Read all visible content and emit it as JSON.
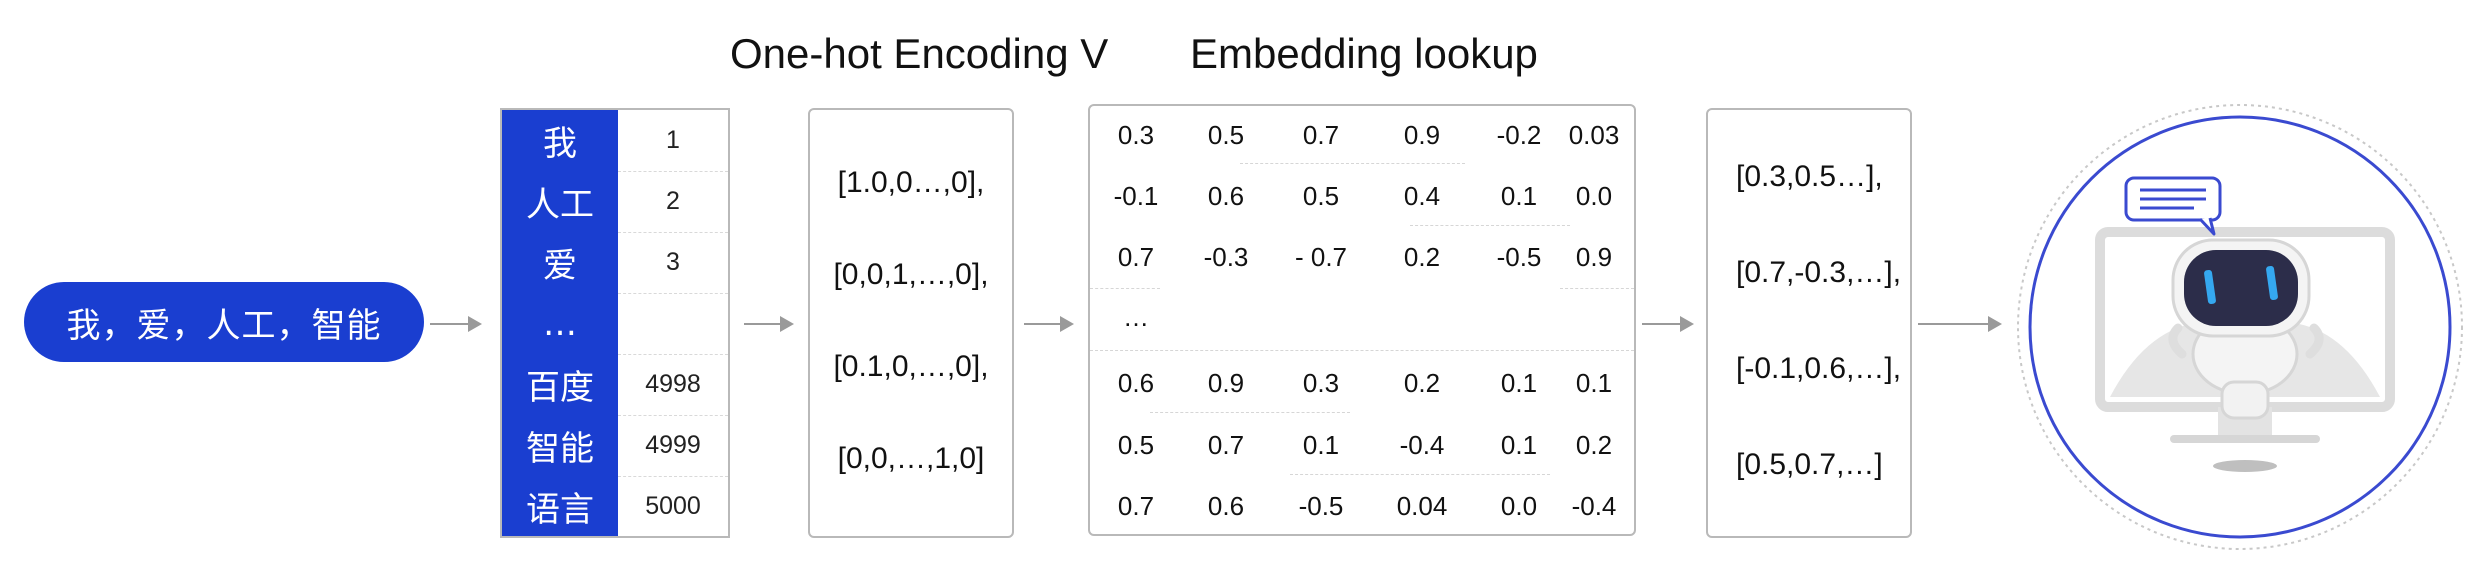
{
  "titles": {
    "onehot": "One-hot Encoding V",
    "embedding": "Embedding lookup"
  },
  "input_sentence": "我，爱，人工，智能",
  "vocab": [
    {
      "word": "我",
      "index": "1"
    },
    {
      "word": "人工",
      "index": "2"
    },
    {
      "word": "爱",
      "index": "3"
    },
    {
      "word": "…",
      "index": ""
    },
    {
      "word": "百度",
      "index": "4998"
    },
    {
      "word": "智能",
      "index": "4999"
    },
    {
      "word": "语言",
      "index": "5000"
    }
  ],
  "onehot_vectors": [
    "[1.0,0…,0],",
    "[0,0,1,…,0],",
    "[0.1,0,…,0],",
    "[0,0,…,1,0]"
  ],
  "embedding_rows": [
    [
      "0.3",
      "0.5",
      "0.7",
      "0.9",
      "-0.2",
      "0.03"
    ],
    [
      "-0.1",
      "0.6",
      "0.5",
      "0.4",
      "0.1",
      "0.0"
    ],
    [
      "0.7",
      "-0.3",
      "- 0.7",
      "0.2",
      "-0.5",
      "0.9"
    ],
    [
      "…"
    ],
    [
      "0.6",
      "0.9",
      "0.3",
      "0.2",
      "0.1",
      "0.1"
    ],
    [
      "0.5",
      "0.7",
      "0.1",
      "-0.4",
      "0.1",
      "0.2"
    ],
    [
      "0.7",
      "0.6",
      "-0.5",
      "0.04",
      "0.0",
      "-0.4"
    ]
  ],
  "output_vectors": [
    "[0.3,0.5…],",
    "[0.7,-0.3,…],",
    "[-0.1,0.6,…],",
    "[0.5,0.7,…]"
  ],
  "colors": {
    "accent_blue": "#1a3ed0",
    "box_border": "#b9b9b9",
    "arrow": "#9a9a9a",
    "robot_screen": "#2c2d4a",
    "robot_eye": "#35a8f0",
    "circle_border": "#3a4ad0"
  },
  "icons": {
    "robot": "robot-icon",
    "chat_bubble": "chat-bubble-icon"
  }
}
